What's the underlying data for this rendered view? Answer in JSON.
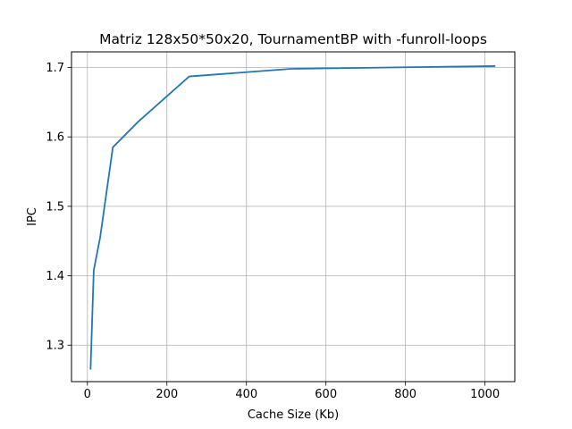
{
  "chart_data": {
    "type": "line",
    "title": "Matriz 128x50*50x20, TournamentBP with -funroll-loops",
    "xlabel": "Cache Size (Kb)",
    "ylabel": "IPC",
    "xlim": [
      -40,
      1075
    ],
    "ylim": [
      1.2475,
      1.7225
    ],
    "xticks": [
      0,
      200,
      400,
      600,
      800,
      1000
    ],
    "yticks": [
      1.3,
      1.4,
      1.5,
      1.6,
      1.7
    ],
    "xtick_labels": [
      "0",
      "200",
      "400",
      "600",
      "800",
      "1000"
    ],
    "ytick_labels": [
      "1.3",
      "1.4",
      "1.5",
      "1.6",
      "1.7"
    ],
    "grid": true,
    "series": [
      {
        "color": "#1f77b4",
        "x": [
          8,
          16,
          32,
          64,
          128,
          256,
          512,
          1024
        ],
        "y": [
          1.266,
          1.408,
          1.455,
          1.585,
          1.622,
          1.687,
          1.698,
          1.702
        ]
      }
    ]
  }
}
